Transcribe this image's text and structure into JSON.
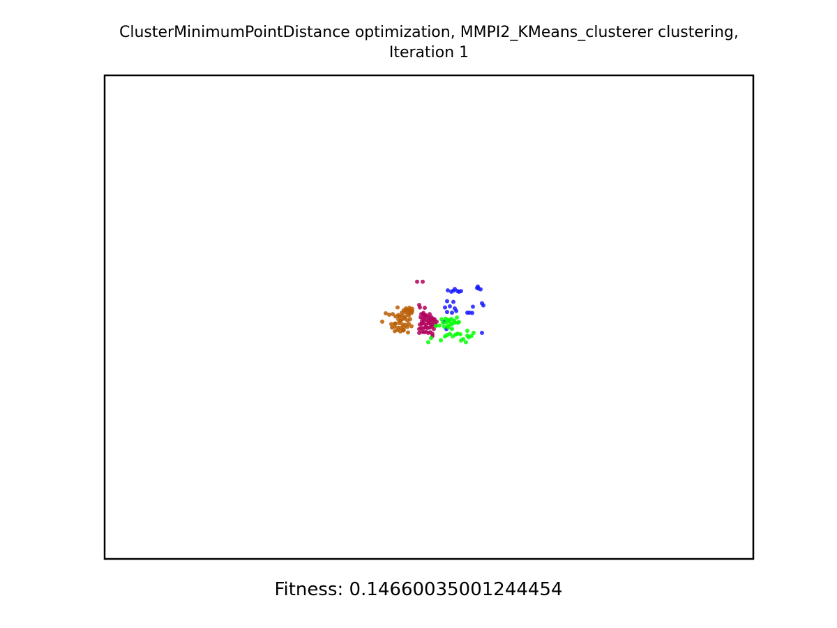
{
  "figure": {
    "title_line_1": "ClusterMinimumPointDistance optimization, MMPI2_KMeans_clusterer clustering,",
    "title_line_2": "Iteration 1",
    "fitness_text": "Fitness: 0.14660035001244454"
  },
  "chart_data": {
    "type": "scatter",
    "title": "ClusterMinimumPointDistance optimization, MMPI2_KMeans_clusterer clustering, Iteration 1",
    "xlabel": "",
    "ylabel": "",
    "axis_ticks_visible": false,
    "grid": false,
    "legend": "none",
    "xlim": [
      0,
      1000
    ],
    "ylim": [
      0,
      1000
    ],
    "series": [
      {
        "color": "#b85c00",
        "x": [
          428.0,
          433.3,
          438.7,
          444.1,
          447.3,
          452.7,
          455.9,
          441.9,
          447.3,
          451.6,
          455.9,
          460.2,
          443.0,
          447.3,
          452.7,
          456.9,
          461.2,
          466.7,
          448.4,
          453.8,
          459.1,
          463.4,
          468.8,
          452.7,
          458.1,
          462.4,
          466.7,
          471.0,
          448.4,
          454.8,
          459.1,
          463.4,
          468.8,
          458.1,
          463.4,
          467.7,
          473.1,
          461.2,
          465.6,
          469.9,
          474.2,
          464.5,
          469.9,
          474.2,
          451.6,
          461.2,
          467.7,
          473.1,
          471.0
        ],
        "y": [
          490.6,
          507.9,
          505.0,
          506.4,
          486.3,
          504.3,
          492.0,
          485.5,
          471.1,
          473.3,
          470.4,
          472.5,
          478.3,
          480.4,
          478.3,
          477.6,
          478.3,
          479.8,
          487.0,
          487.7,
          484.8,
          484.1,
          486.3,
          495.6,
          494.9,
          497.0,
          493.4,
          495.6,
          501.4,
          501.4,
          502.8,
          500.7,
          503.5,
          509.3,
          510.0,
          507.2,
          508.6,
          514.4,
          513.7,
          515.1,
          512.2,
          518.0,
          519.4,
          517.3,
          520.1,
          473.3,
          468.3,
          481.2,
          511.5
        ]
      },
      {
        "color": "#b0005a",
        "x": [
          481.7,
          490.3,
          484.9,
          491.4,
          484.9,
          489.2,
          492.5,
          495.7,
          498.9,
          502.2,
          505.4,
          484.9,
          488.2,
          491.4,
          494.6,
          497.8,
          501.1,
          504.3,
          507.5,
          510.8,
          486.0,
          489.2,
          492.5,
          495.7,
          498.9,
          502.2,
          505.4,
          508.6,
          489.2,
          492.5,
          495.7,
          498.9,
          502.2,
          505.4,
          508.6,
          511.8,
          487.1,
          490.3,
          493.5,
          496.8,
          500.0,
          503.2,
          506.5,
          488.2,
          491.4,
          494.6,
          501.1,
          505.4,
          493.5,
          486.0
        ],
        "y": [
          573.3,
          573.3,
          525.2,
          508.6,
          467.5,
          469.6,
          468.9,
          469.6,
          467.5,
          468.9,
          465.3,
          475.4,
          477.6,
          476.9,
          479.0,
          477.6,
          478.3,
          479.8,
          475.4,
          482.7,
          484.8,
          486.3,
          487.0,
          484.1,
          487.7,
          486.3,
          484.8,
          488.4,
          491.3,
          493.4,
          494.9,
          492.7,
          494.1,
          492.7,
          495.6,
          490.6,
          499.9,
          497.7,
          500.7,
          502.1,
          499.2,
          500.7,
          497.0,
          506.4,
          505.7,
          504.3,
          506.4,
          461.0,
          519.4,
          520.1
        ]
      },
      {
        "color": "#1a1aff",
        "x": [
          529.0,
          537.6,
          544.1,
          549.5,
          534.4,
          539.8,
          546.2,
          567.7,
          575.3,
          576.3,
          579.6,
          581.7,
          583.9,
          528.0,
          537.6,
          524.7,
          532.3,
          539.8,
          528.0,
          535.5,
          542.0,
          559.1,
          562.4,
          566.7,
          581.7,
          574.2,
          526.9,
          523.7
        ],
        "y": [
          555.4,
          554.7,
          553.9,
          554.0,
          552.6,
          558.3,
          552.5,
          521.6,
          563.3,
          559.1,
          557.6,
          528.7,
          524.4,
          533.1,
          531.6,
          520.1,
          522.3,
          518.0,
          510.7,
          509.3,
          512.9,
          509.3,
          509.3,
          508.6,
          467.5,
          560.4,
          475.4,
          490.6
        ]
      },
      {
        "color": "#00ff00",
        "x": [
          498.9,
          503.2,
          518.3,
          524.7,
          528.0,
          532.3,
          536.6,
          540.9,
          519.4,
          525.8,
          530.1,
          534.4,
          538.7,
          543.0,
          521.5,
          527.0,
          531.2,
          535.5,
          539.8,
          516.1,
          523.7,
          529.0,
          533.3,
          530.1,
          510.8,
          535.5,
          544.1,
          546.2,
          556.9,
          549.5,
          552.7,
          559.1,
          561.3,
          548.4,
          544.1,
          565.6,
          568.8,
          559.1
        ],
        "y": [
          448.0,
          456.6,
          452.3,
          460.2,
          463.1,
          465.3,
          460.2,
          463.8,
          495.6,
          497.0,
          494.1,
          496.3,
          492.7,
          499.2,
          488.4,
          489.9,
          491.3,
          486.3,
          488.4,
          482.7,
          480.4,
          481.9,
          484.8,
          478.3,
          481.9,
          475.4,
          488.4,
          489.9,
          448.0,
          451.6,
          454.5,
          461.7,
          458.1,
          464.6,
          466.0,
          461.0,
          467.5,
          471.8
        ]
      }
    ]
  }
}
